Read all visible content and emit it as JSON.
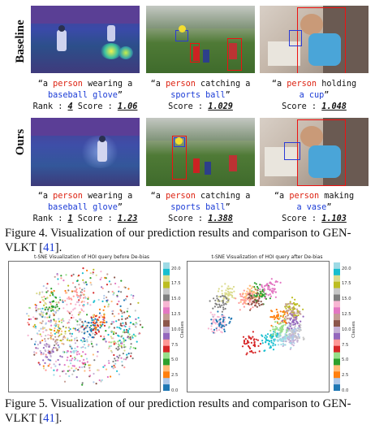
{
  "figure4": {
    "row_labels": {
      "baseline": "Baseline",
      "ours": "Ours"
    },
    "baseline": [
      {
        "prefix": "“a ",
        "subject": "person",
        "verb": " wearing a",
        "object": "baseball glove",
        "suffix": "”",
        "rank_label": "Rank : ",
        "rank": "4",
        "score_label": " Score : ",
        "score": "1.06"
      },
      {
        "prefix": "“a ",
        "subject": "person",
        "verb": " catching a",
        "object": "sports ball",
        "suffix": "”",
        "rank_label": "",
        "rank": "",
        "score_label": "Score : ",
        "score": "1.029"
      },
      {
        "prefix": "“a ",
        "subject": "person",
        "verb": " holding",
        "object": "a cup",
        "suffix": "”",
        "rank_label": "",
        "rank": "",
        "score_label": "Score : ",
        "score": "1.048"
      }
    ],
    "ours": [
      {
        "prefix": "“a ",
        "subject": "person",
        "verb": " wearing a",
        "object": "baseball glove",
        "suffix": "”",
        "rank_label": "Rank : ",
        "rank": "1",
        "score_label": " Score : ",
        "score": "1.23"
      },
      {
        "prefix": "“a ",
        "subject": "person",
        "verb": " catching a",
        "object": "sports ball",
        "suffix": "”",
        "rank_label": "",
        "rank": "",
        "score_label": "Score : ",
        "score": "1.388"
      },
      {
        "prefix": "“a ",
        "subject": "person",
        "verb": " making",
        "object": "a vase",
        "suffix": "”",
        "rank_label": "",
        "rank": "",
        "score_label": "Score : ",
        "score": "1.103"
      }
    ],
    "caption_prefix": "Figure 4.  Visualization of our prediction results and comparison to GEN-VLKT [",
    "caption_ref": "41",
    "caption_suffix": "]."
  },
  "figure5": {
    "caption_prefix": "Figure 5.  Visualization of our prediction results and comparison to GEN-VLKT [",
    "caption_ref": "41",
    "caption_suffix": "].",
    "chart_data": [
      {
        "type": "scatter",
        "title": "t-SNE Visualization of HOI query before De-bias",
        "colorbar_label": "Classes",
        "colorbar_ticks": [
          "0.0",
          "2.5",
          "5.0",
          "7.5",
          "10.0",
          "12.5",
          "15.0",
          "17.5",
          "20.0"
        ],
        "colorbar_range": [
          0,
          21
        ],
        "colormap": [
          "#1f77b4",
          "#aec7e8",
          "#ff7f0e",
          "#ffbb78",
          "#2ca02c",
          "#98df8a",
          "#d62728",
          "#ff9896",
          "#9467bd",
          "#c5b0d5",
          "#8c564b",
          "#c49c94",
          "#e377c2",
          "#f7b6d2",
          "#7f7f7f",
          "#c7c7c7",
          "#bcbd22",
          "#dbdb8d",
          "#17becf",
          "#9edae5"
        ],
        "cluster_layout": "mixed"
      },
      {
        "type": "scatter",
        "title": "t-SNE Visualization of HOI query after De-bias",
        "colorbar_label": "Classes",
        "colorbar_ticks": [
          "0.0",
          "2.5",
          "5.0",
          "7.5",
          "10.0",
          "12.5",
          "15.0",
          "17.5",
          "20.0"
        ],
        "colorbar_range": [
          0,
          21
        ],
        "colormap": [
          "#1f77b4",
          "#aec7e8",
          "#ff7f0e",
          "#ffbb78",
          "#2ca02c",
          "#98df8a",
          "#d62728",
          "#ff9896",
          "#9467bd",
          "#c5b0d5",
          "#8c564b",
          "#c49c94",
          "#e377c2",
          "#f7b6d2",
          "#7f7f7f",
          "#c7c7c7",
          "#bcbd22",
          "#dbdb8d",
          "#17becf",
          "#9edae5"
        ],
        "cluster_layout": "separated"
      }
    ]
  }
}
